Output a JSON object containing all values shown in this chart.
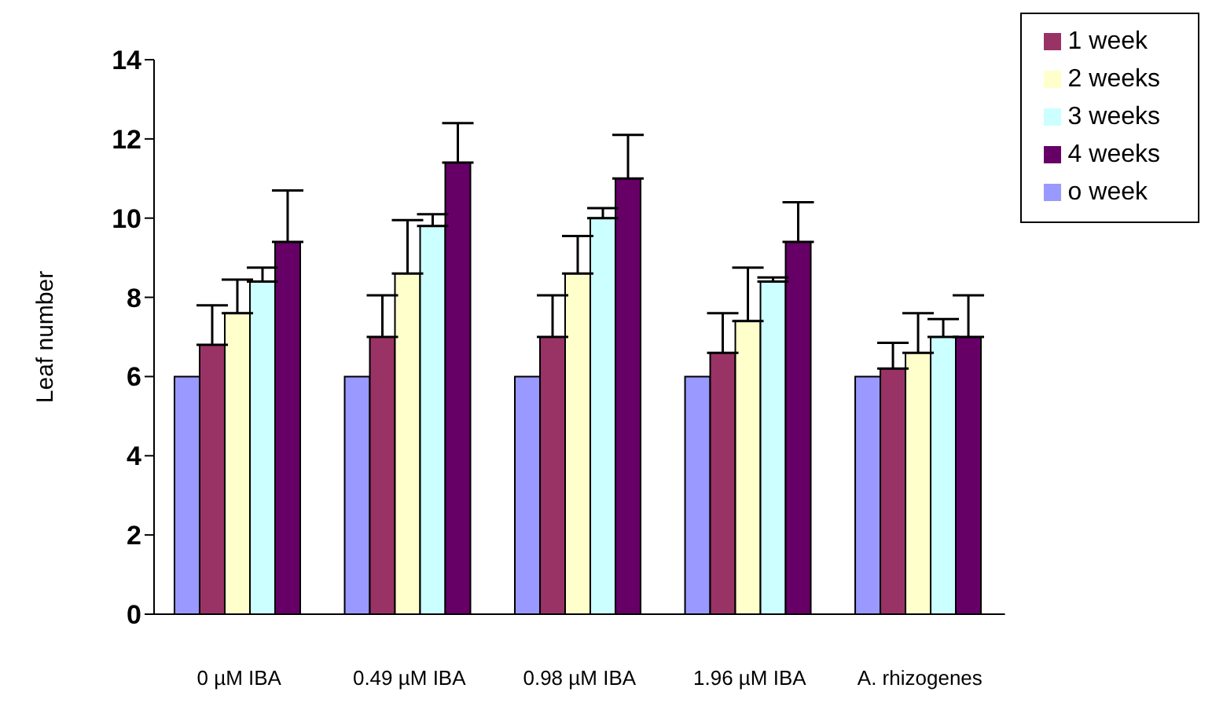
{
  "chart_data": {
    "type": "bar",
    "ylabel": "Leaf number",
    "categories": [
      "0 µM IBA",
      "0.49 µM IBA",
      "0.98 µM IBA",
      "1.96 µM IBA",
      "A. rhizogenes"
    ],
    "series": [
      {
        "name": "o week",
        "color": "#9999ff",
        "values": [
          6,
          6,
          6,
          6,
          6
        ]
      },
      {
        "name": "1 week",
        "color": "#993366",
        "values": [
          6.8,
          7.0,
          7.0,
          6.6,
          6.2
        ],
        "errors": [
          [
            6.8,
            7.8
          ],
          [
            7.0,
            8.05
          ],
          [
            7.0,
            8.05
          ],
          [
            6.6,
            7.6
          ],
          [
            6.2,
            6.85
          ]
        ]
      },
      {
        "name": "2 weeks",
        "color": "#ffffcc",
        "values": [
          7.6,
          8.6,
          8.6,
          7.4,
          6.6
        ],
        "errors": [
          [
            7.6,
            8.45
          ],
          [
            8.6,
            9.95
          ],
          [
            8.6,
            9.55
          ],
          [
            7.4,
            8.75
          ],
          [
            6.6,
            7.6
          ]
        ]
      },
      {
        "name": "3 weeks",
        "color": "#ccffff",
        "values": [
          8.4,
          9.8,
          10.0,
          8.4,
          7.0
        ],
        "errors": [
          [
            8.4,
            8.75
          ],
          [
            9.8,
            10.1
          ],
          [
            10.0,
            10.25
          ],
          [
            8.4,
            8.5
          ],
          [
            7.0,
            7.45
          ]
        ]
      },
      {
        "name": "4 weeks",
        "color": "#660066",
        "values": [
          9.4,
          11.4,
          11.0,
          9.4,
          7.0
        ],
        "errors": [
          [
            9.4,
            10.7
          ],
          [
            11.4,
            12.4
          ],
          [
            11.0,
            12.1
          ],
          [
            9.4,
            10.4
          ],
          [
            7.0,
            8.05
          ]
        ]
      }
    ],
    "ylim": [
      0,
      14
    ],
    "yticks": [
      0,
      2,
      4,
      6,
      8,
      10,
      12,
      14
    ],
    "grid": false,
    "legend": "top right"
  }
}
